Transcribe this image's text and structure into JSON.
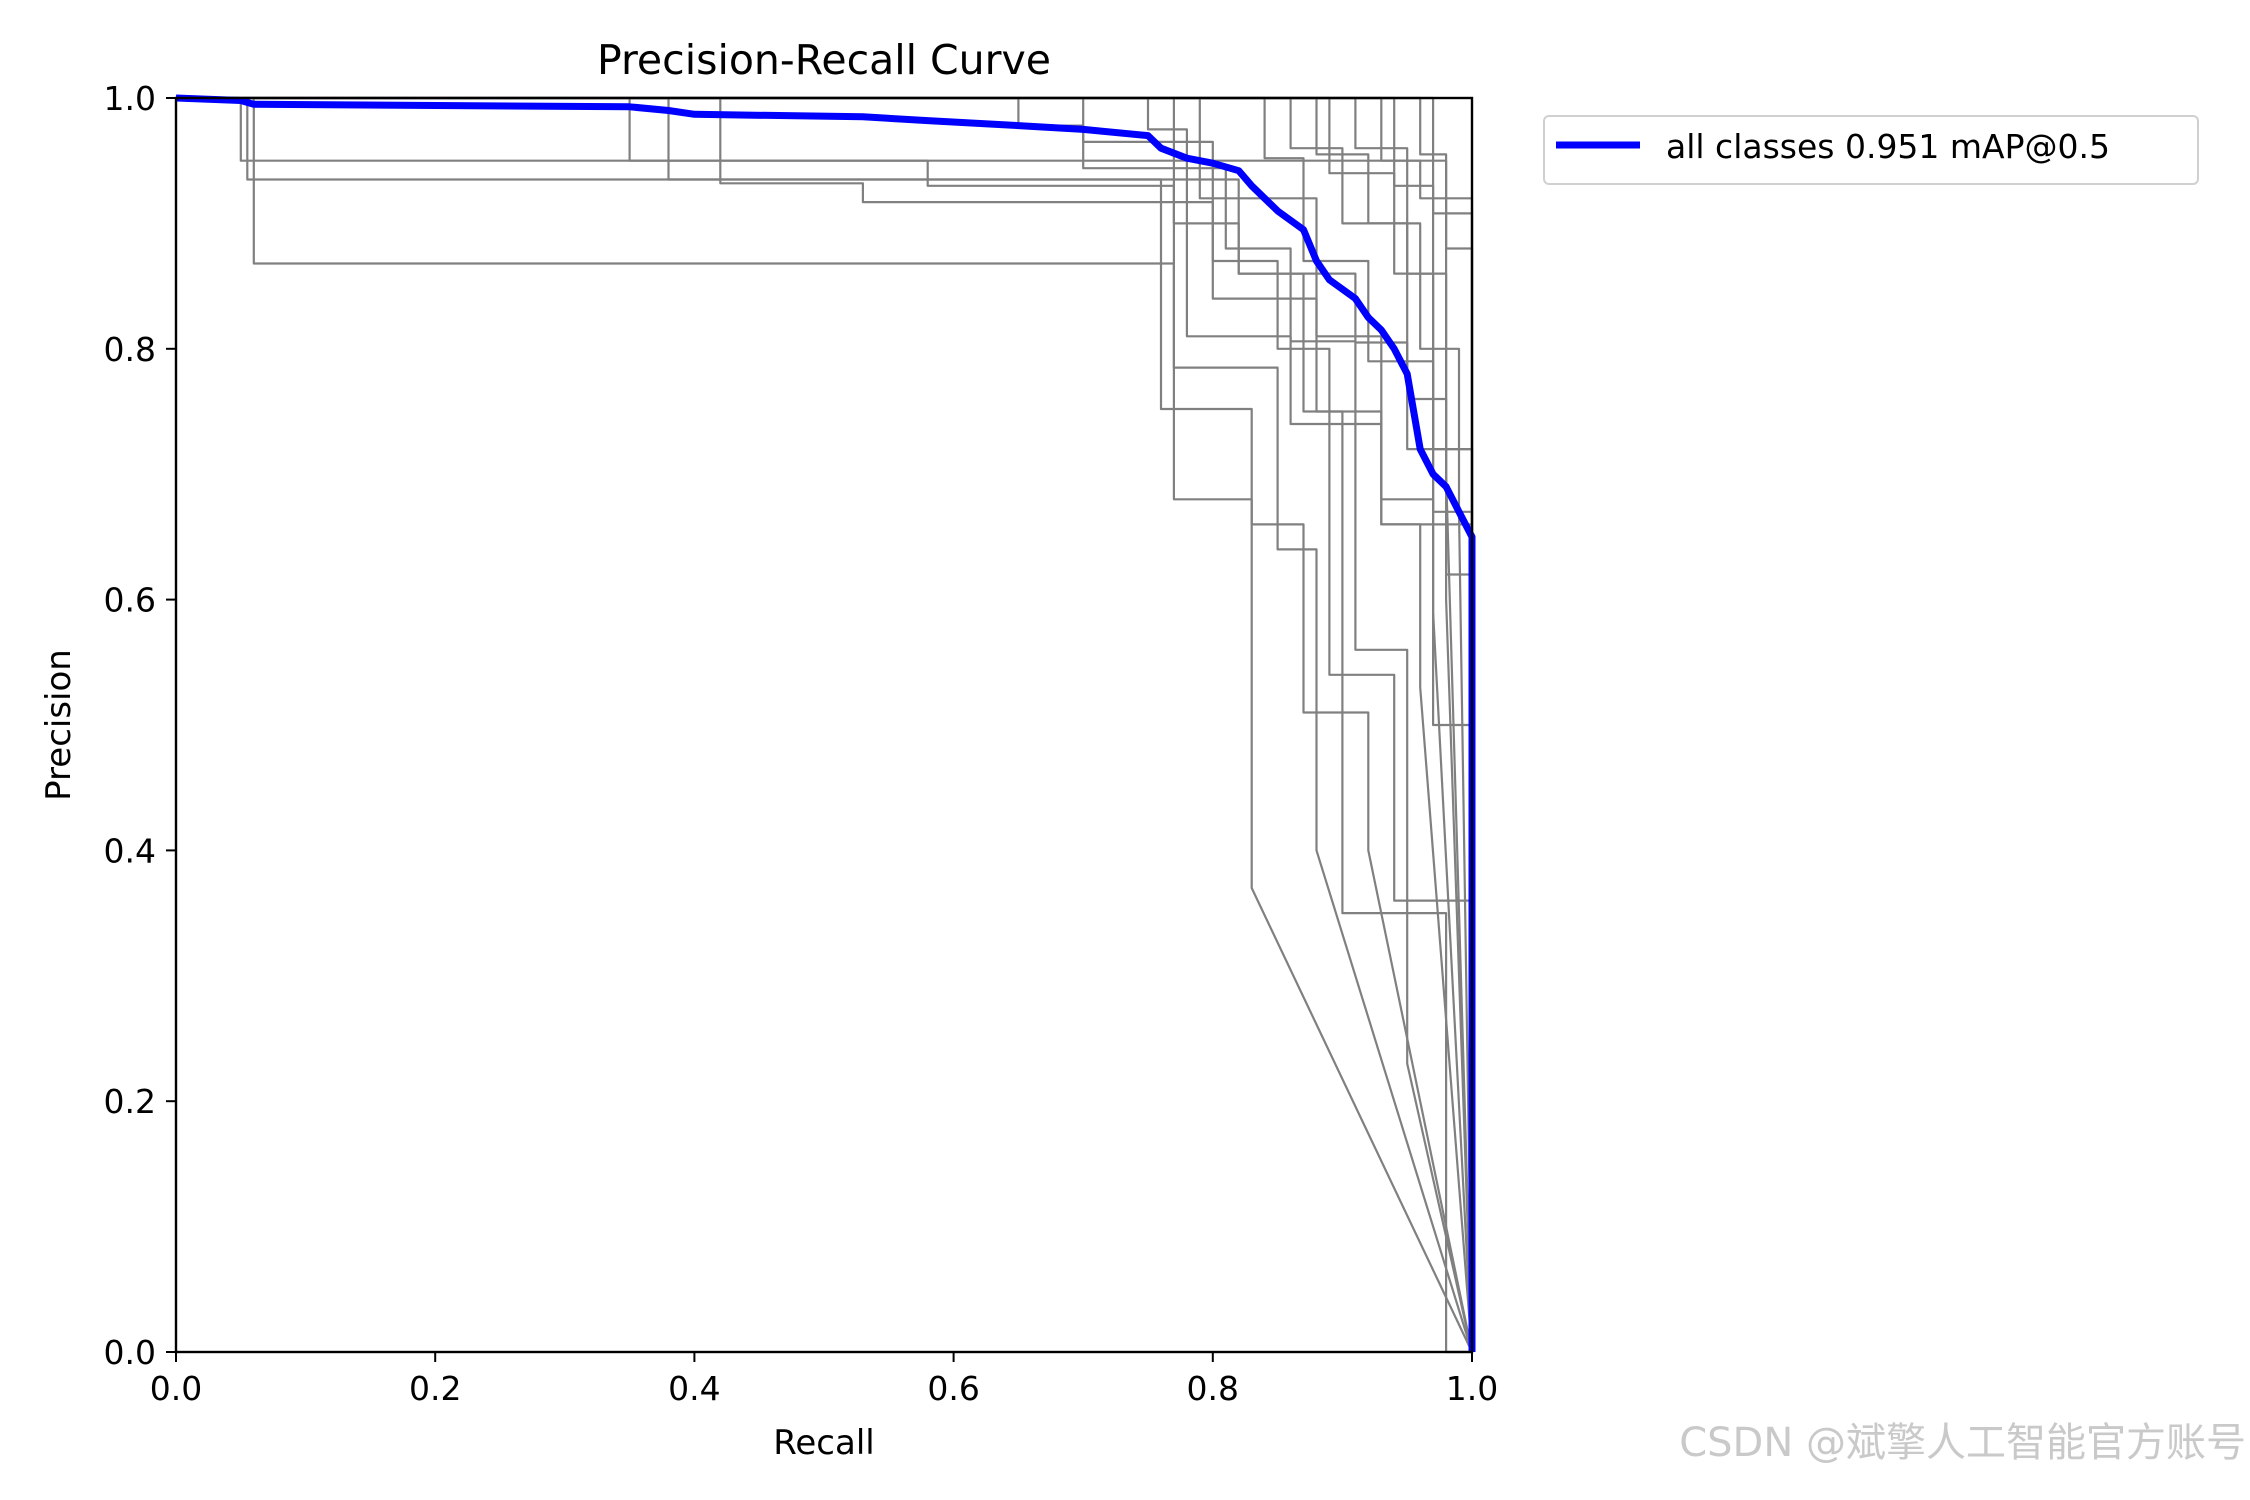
{
  "chart_data": {
    "type": "line",
    "title": "Precision-Recall Curve",
    "xlabel": "Recall",
    "ylabel": "Precision",
    "xlim": [
      0,
      1
    ],
    "ylim": [
      0,
      1
    ],
    "xticks": [
      "0.0",
      "0.2",
      "0.4",
      "0.6",
      "0.8",
      "1.0"
    ],
    "yticks": [
      "0.0",
      "0.2",
      "0.4",
      "0.6",
      "0.8",
      "1.0"
    ],
    "grid": false,
    "legend_position": "outside-top-right",
    "series": [
      {
        "name": "all classes 0.951 mAP@0.5",
        "color": "#0000ff",
        "x": [
          0,
          0.05,
          0.06,
          0.35,
          0.38,
          0.4,
          0.53,
          0.58,
          0.65,
          0.7,
          0.75,
          0.76,
          0.78,
          0.8,
          0.82,
          0.83,
          0.84,
          0.85,
          0.87,
          0.88,
          0.89,
          0.91,
          0.92,
          0.93,
          0.94,
          0.95,
          0.955,
          0.96,
          0.97,
          0.98,
          0.99,
          1.0,
          1.0
        ],
        "y": [
          1.0,
          0.998,
          0.995,
          0.993,
          0.99,
          0.987,
          0.985,
          0.982,
          0.978,
          0.975,
          0.97,
          0.96,
          0.952,
          0.948,
          0.942,
          0.93,
          0.92,
          0.91,
          0.895,
          0.87,
          0.855,
          0.84,
          0.825,
          0.815,
          0.8,
          0.78,
          0.75,
          0.72,
          0.7,
          0.69,
          0.67,
          0.65,
          0.0
        ]
      },
      {
        "color": "#808080",
        "x": [
          0,
          0.05,
          0.05,
          0.98,
          0.98,
          1.0,
          1.0
        ],
        "y": [
          1.0,
          1.0,
          0.95,
          0.95,
          0.62,
          0.62,
          0.0
        ]
      },
      {
        "color": "#808080",
        "x": [
          0,
          0.055,
          0.055,
          0.82,
          0.82,
          0.87,
          0.87,
          0.93,
          0.93,
          1.0,
          1.0
        ],
        "y": [
          1.0,
          1.0,
          0.935,
          0.935,
          0.86,
          0.86,
          0.75,
          0.75,
          0.66,
          0.66,
          0.0
        ]
      },
      {
        "color": "#808080",
        "x": [
          0,
          0.06,
          0.06,
          0.65,
          0.65,
          0.77,
          0.77,
          0.83,
          0.83,
          1.0
        ],
        "y": [
          1.0,
          1.0,
          0.868,
          0.868,
          0.868,
          0.868,
          0.68,
          0.68,
          0.37,
          0.0
        ]
      },
      {
        "color": "#808080",
        "x": [
          0,
          0.35,
          0.35,
          0.58,
          0.58,
          0.77,
          0.77,
          0.85,
          0.85,
          0.88,
          0.88,
          1.0
        ],
        "y": [
          1.0,
          1.0,
          0.95,
          0.95,
          0.93,
          0.93,
          0.785,
          0.785,
          0.64,
          0.64,
          0.4,
          0.0
        ]
      },
      {
        "color": "#808080",
        "x": [
          0,
          0.38,
          0.38,
          0.76,
          0.76,
          0.83,
          0.83,
          0.87,
          0.87,
          0.92,
          0.92,
          1.0
        ],
        "y": [
          1.0,
          1.0,
          0.935,
          0.935,
          0.752,
          0.752,
          0.66,
          0.66,
          0.51,
          0.51,
          0.4,
          0.0
        ]
      },
      {
        "color": "#808080",
        "x": [
          0,
          0.42,
          0.42,
          0.53,
          0.53,
          0.8,
          0.8,
          0.88,
          0.88,
          0.9,
          0.9,
          0.98,
          0.98,
          1.0
        ],
        "y": [
          1.0,
          1.0,
          0.932,
          0.932,
          0.917,
          0.917,
          0.84,
          0.84,
          0.75,
          0.75,
          0.35,
          0.35,
          0.0,
          0.0
        ]
      },
      {
        "color": "#808080",
        "x": [
          0,
          0.65,
          0.65,
          0.7,
          0.7,
          0.81,
          0.81,
          0.86,
          0.86,
          0.91,
          0.91,
          0.95,
          0.95,
          1.0
        ],
        "y": [
          1.0,
          1.0,
          0.978,
          0.978,
          0.944,
          0.944,
          0.88,
          0.88,
          0.806,
          0.806,
          0.56,
          0.56,
          0.23,
          0.0
        ]
      },
      {
        "color": "#808080",
        "x": [
          0,
          0.7,
          0.7,
          0.8,
          0.8,
          0.85,
          0.85,
          0.89,
          0.89,
          0.94,
          0.94,
          1.0,
          1.0
        ],
        "y": [
          1.0,
          1.0,
          0.965,
          0.965,
          0.87,
          0.87,
          0.8,
          0.8,
          0.54,
          0.54,
          0.36,
          0.36,
          0.0
        ]
      },
      {
        "color": "#808080",
        "x": [
          0,
          0.75,
          0.75,
          0.78,
          0.78,
          0.86,
          0.86,
          0.93,
          0.93,
          0.97,
          0.97,
          1.0
        ],
        "y": [
          1.0,
          1.0,
          0.975,
          0.975,
          0.81,
          0.81,
          0.74,
          0.74,
          0.68,
          0.68,
          0.59,
          0.0
        ]
      },
      {
        "color": "#808080",
        "x": [
          0,
          0.77,
          0.77,
          0.82,
          0.82,
          0.91,
          0.91,
          0.95,
          0.95,
          1.0,
          1.0
        ],
        "y": [
          1.0,
          1.0,
          0.9,
          0.9,
          0.86,
          0.86,
          0.805,
          0.805,
          0.72,
          0.72,
          0.0
        ]
      },
      {
        "color": "#808080",
        "x": [
          0,
          0.79,
          0.79,
          0.88,
          0.88,
          0.93,
          0.93,
          0.96,
          0.96,
          1.0
        ],
        "y": [
          1.0,
          1.0,
          0.92,
          0.92,
          0.81,
          0.81,
          0.66,
          0.66,
          0.53,
          0.0
        ]
      },
      {
        "color": "#808080",
        "x": [
          0,
          0.84,
          0.84,
          0.87,
          0.87,
          0.92,
          0.92,
          0.97,
          0.97,
          1.0,
          1.0
        ],
        "y": [
          1.0,
          1.0,
          0.952,
          0.952,
          0.87,
          0.87,
          0.79,
          0.79,
          0.67,
          0.67,
          0.0
        ]
      },
      {
        "color": "#808080",
        "x": [
          0,
          0.86,
          0.86,
          0.9,
          0.9,
          0.95,
          0.95,
          0.98,
          0.98,
          1.0
        ],
        "y": [
          1.0,
          1.0,
          0.96,
          0.96,
          0.9,
          0.9,
          0.76,
          0.76,
          0.6,
          0.0
        ]
      },
      {
        "color": "#808080",
        "x": [
          0,
          0.88,
          0.88,
          0.92,
          0.92,
          0.96,
          0.96,
          0.99,
          0.99,
          1.0
        ],
        "y": [
          1.0,
          1.0,
          0.955,
          0.955,
          0.9,
          0.9,
          0.8,
          0.8,
          0.67,
          0.0
        ]
      },
      {
        "color": "#808080",
        "x": [
          0,
          0.89,
          0.89,
          0.94,
          0.94,
          0.97,
          0.97,
          1.0,
          1.0
        ],
        "y": [
          1.0,
          1.0,
          0.94,
          0.94,
          0.86,
          0.86,
          0.72,
          0.72,
          0.0
        ]
      },
      {
        "color": "#808080",
        "x": [
          0,
          0.91,
          0.91,
          0.95,
          0.95,
          0.98,
          0.98,
          1.0
        ],
        "y": [
          1.0,
          1.0,
          0.96,
          0.96,
          0.86,
          0.86,
          0.7,
          0.0
        ]
      },
      {
        "color": "#808080",
        "x": [
          0,
          0.93,
          0.93,
          0.96,
          0.96,
          1.0,
          1.0
        ],
        "y": [
          1.0,
          1.0,
          0.95,
          0.95,
          0.92,
          0.92,
          0.0
        ]
      },
      {
        "color": "#808080",
        "x": [
          0,
          0.94,
          0.94,
          0.97,
          0.97,
          1.0,
          1.0
        ],
        "y": [
          1.0,
          1.0,
          0.93,
          0.93,
          0.5,
          0.5,
          0.0
        ]
      },
      {
        "color": "#808080",
        "x": [
          0,
          0.96,
          0.96,
          0.98,
          0.98,
          1.0,
          1.0
        ],
        "y": [
          1.0,
          1.0,
          0.955,
          0.955,
          0.88,
          0.88,
          0.0
        ]
      },
      {
        "color": "#808080",
        "x": [
          0,
          0.97,
          0.97,
          1.0,
          1.0
        ],
        "y": [
          1.0,
          1.0,
          0.908,
          0.908,
          0.0
        ]
      }
    ]
  },
  "watermark": "CSDN @斌擎人工智能官方账号"
}
